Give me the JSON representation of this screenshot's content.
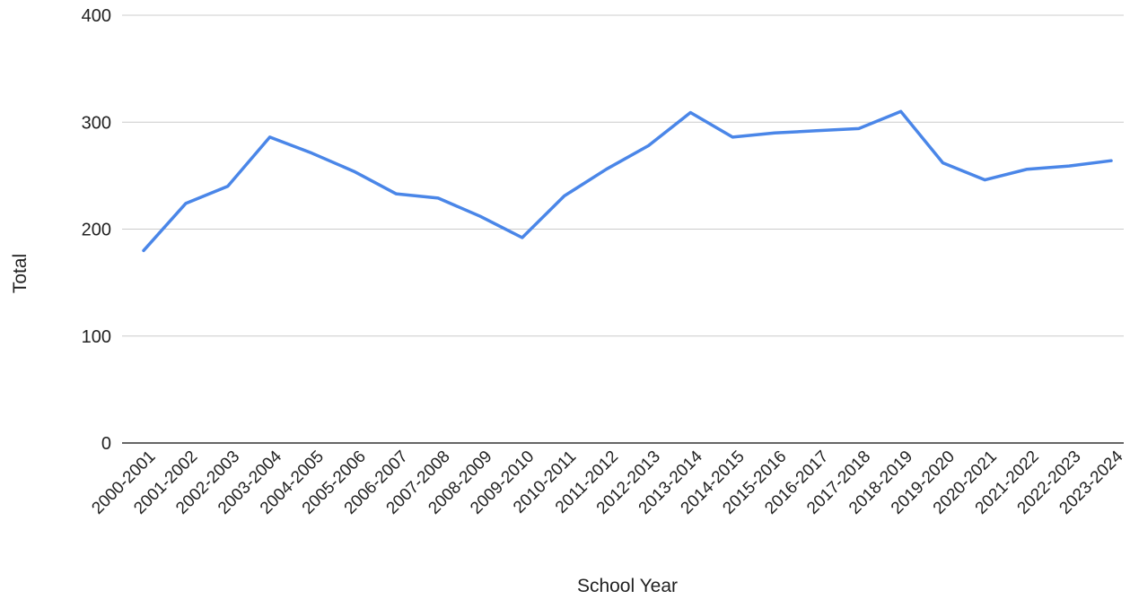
{
  "chart_data": {
    "type": "line",
    "title": "",
    "xlabel": "School Year",
    "ylabel": "Total",
    "ylim": [
      0,
      400
    ],
    "yticks": [
      "0",
      "100",
      "200",
      "300",
      "400"
    ],
    "grid": true,
    "categories": [
      "2000-2001",
      "2001-2002",
      "2002-2003",
      "2003-2004",
      "2004-2005",
      "2005-2006",
      "2006-2007",
      "2007-2008",
      "2008-2009",
      "2009-2010",
      "2010-2011",
      "2011-2012",
      "2012-2013",
      "2013-2014",
      "2014-2015",
      "2015-2016",
      "2016-2017",
      "2017-2018",
      "2018-2019",
      "2019-2020",
      "2020-2021",
      "2021-2022",
      "2022-2023",
      "2023-2024"
    ],
    "series": [
      {
        "values": [
          180,
          224,
          240,
          286,
          271,
          254,
          233,
          229,
          212,
          192,
          231,
          256,
          278,
          309,
          286,
          290,
          292,
          294,
          310,
          262,
          246,
          256,
          259,
          264
        ],
        "color": "#4a86e8"
      }
    ]
  }
}
